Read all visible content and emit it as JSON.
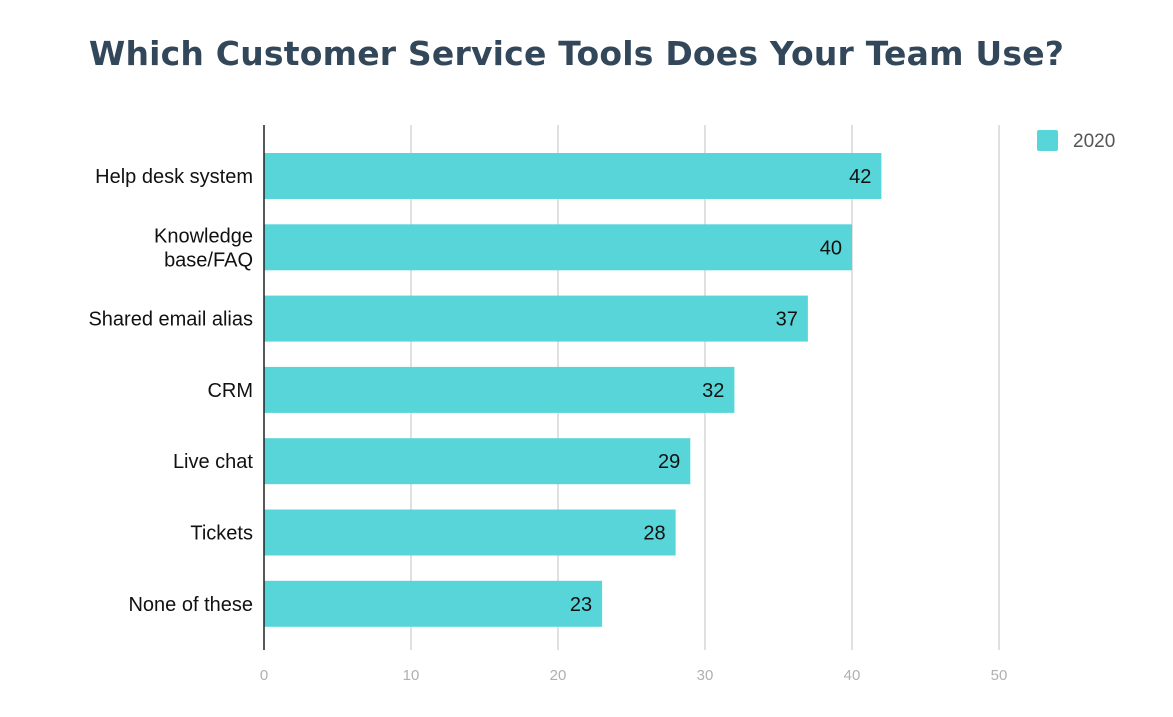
{
  "chart_data": {
    "type": "bar",
    "orientation": "horizontal",
    "title": "Which Customer Service Tools Does Your Team Use?",
    "xlabel": "",
    "ylabel": "",
    "categories": [
      "Help desk system",
      "Knowledge base/FAQ",
      "Shared email alias",
      "CRM",
      "Live chat",
      "Tickets",
      "None of these"
    ],
    "category_lines": [
      [
        "Help desk system"
      ],
      [
        "Knowledge",
        "base/FAQ"
      ],
      [
        "Shared email alias"
      ],
      [
        "CRM"
      ],
      [
        "Live chat"
      ],
      [
        "Tickets"
      ],
      [
        "None of these"
      ]
    ],
    "series": [
      {
        "name": "2020",
        "values": [
          42,
          40,
          37,
          32,
          29,
          28,
          23
        ],
        "color": "#58d5d8"
      }
    ],
    "xlim": [
      0,
      50
    ],
    "xticks": [
      0,
      10,
      20,
      30,
      40,
      50
    ],
    "grid": true,
    "data_labels": true,
    "legend_position": "top-right"
  },
  "colors": {
    "title": "#33475b",
    "bar": "#58d5d8",
    "grid": "#d6d6d6",
    "axis": "#222222",
    "tick_label": "#b0b0b0"
  }
}
